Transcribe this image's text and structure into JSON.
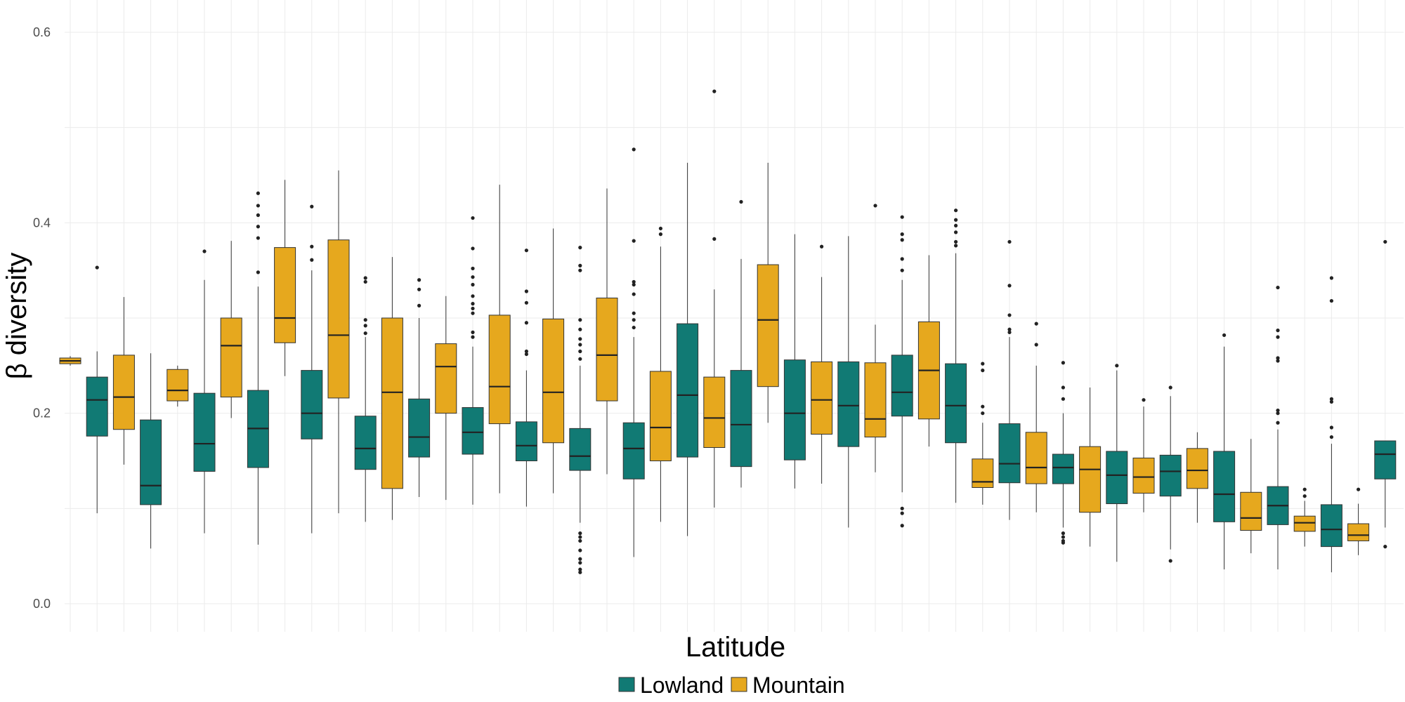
{
  "chart_data": {
    "type": "box",
    "xlabel": "Latitude",
    "ylabel": "β diversity",
    "ylim": [
      -0.03,
      0.63
    ],
    "y_ticks": [
      0.0,
      0.2,
      0.4,
      0.6
    ],
    "y_tick_labels": [
      "0.0",
      "0.2",
      "0.4",
      "0.6"
    ],
    "grid": true,
    "legend": {
      "position": "bottom",
      "entries": [
        "Lowland",
        "Mountain"
      ]
    },
    "colors": {
      "Lowland": "#117A74",
      "Mountain": "#E6A81E"
    },
    "boxes": [
      {
        "group": "Mountain",
        "q1": 0.252,
        "median": 0.255,
        "q3": 0.258,
        "whisker_low": 0.25,
        "whisker_high": 0.26,
        "outliers": []
      },
      {
        "group": "Lowland",
        "q1": 0.176,
        "median": 0.214,
        "q3": 0.238,
        "whisker_low": 0.095,
        "whisker_high": 0.265,
        "outliers": [
          0.353
        ]
      },
      {
        "group": "Mountain",
        "q1": 0.183,
        "median": 0.217,
        "q3": 0.261,
        "whisker_low": 0.146,
        "whisker_high": 0.322,
        "outliers": []
      },
      {
        "group": "Lowland",
        "q1": 0.104,
        "median": 0.124,
        "q3": 0.193,
        "whisker_low": 0.058,
        "whisker_high": 0.263,
        "outliers": []
      },
      {
        "group": "Mountain",
        "q1": 0.213,
        "median": 0.224,
        "q3": 0.246,
        "whisker_low": 0.207,
        "whisker_high": 0.25,
        "outliers": []
      },
      {
        "group": "Lowland",
        "q1": 0.139,
        "median": 0.168,
        "q3": 0.221,
        "whisker_low": 0.074,
        "whisker_high": 0.34,
        "outliers": [
          0.37
        ]
      },
      {
        "group": "Mountain",
        "q1": 0.217,
        "median": 0.271,
        "q3": 0.3,
        "whisker_low": 0.195,
        "whisker_high": 0.381,
        "outliers": []
      },
      {
        "group": "Lowland",
        "q1": 0.143,
        "median": 0.184,
        "q3": 0.224,
        "whisker_low": 0.062,
        "whisker_high": 0.333,
        "outliers": [
          0.348,
          0.384,
          0.396,
          0.408,
          0.418,
          0.431
        ]
      },
      {
        "group": "Mountain",
        "q1": 0.274,
        "median": 0.3,
        "q3": 0.374,
        "whisker_low": 0.239,
        "whisker_high": 0.445,
        "outliers": []
      },
      {
        "group": "Lowland",
        "q1": 0.173,
        "median": 0.2,
        "q3": 0.245,
        "whisker_low": 0.074,
        "whisker_high": 0.35,
        "outliers": [
          0.361,
          0.375,
          0.417
        ]
      },
      {
        "group": "Mountain",
        "q1": 0.216,
        "median": 0.282,
        "q3": 0.382,
        "whisker_low": 0.095,
        "whisker_high": 0.455,
        "outliers": []
      },
      {
        "group": "Lowland",
        "q1": 0.141,
        "median": 0.163,
        "q3": 0.197,
        "whisker_low": 0.086,
        "whisker_high": 0.28,
        "outliers": [
          0.284,
          0.292,
          0.298,
          0.338,
          0.342
        ]
      },
      {
        "group": "Mountain",
        "q1": 0.121,
        "median": 0.222,
        "q3": 0.3,
        "whisker_low": 0.088,
        "whisker_high": 0.364,
        "outliers": []
      },
      {
        "group": "Lowland",
        "q1": 0.154,
        "median": 0.175,
        "q3": 0.215,
        "whisker_low": 0.112,
        "whisker_high": 0.3,
        "outliers": [
          0.313,
          0.33,
          0.34
        ]
      },
      {
        "group": "Mountain",
        "q1": 0.2,
        "median": 0.249,
        "q3": 0.273,
        "whisker_low": 0.109,
        "whisker_high": 0.323,
        "outliers": []
      },
      {
        "group": "Lowland",
        "q1": 0.157,
        "median": 0.18,
        "q3": 0.206,
        "whisker_low": 0.104,
        "whisker_high": 0.27,
        "outliers": [
          0.28,
          0.285,
          0.305,
          0.31,
          0.315,
          0.323,
          0.335,
          0.343,
          0.352,
          0.373,
          0.405
        ]
      },
      {
        "group": "Mountain",
        "q1": 0.189,
        "median": 0.228,
        "q3": 0.303,
        "whisker_low": 0.116,
        "whisker_high": 0.44,
        "outliers": []
      },
      {
        "group": "Lowland",
        "q1": 0.15,
        "median": 0.166,
        "q3": 0.191,
        "whisker_low": 0.102,
        "whisker_high": 0.245,
        "outliers": [
          0.262,
          0.265,
          0.295,
          0.316,
          0.328,
          0.371
        ]
      },
      {
        "group": "Mountain",
        "q1": 0.169,
        "median": 0.222,
        "q3": 0.299,
        "whisker_low": 0.116,
        "whisker_high": 0.394,
        "outliers": []
      },
      {
        "group": "Lowland",
        "q1": 0.14,
        "median": 0.155,
        "q3": 0.184,
        "whisker_low": 0.085,
        "whisker_high": 0.25,
        "outliers": [
          0.033,
          0.036,
          0.043,
          0.047,
          0.056,
          0.066,
          0.07,
          0.074,
          0.257,
          0.265,
          0.272,
          0.278,
          0.288,
          0.298,
          0.35,
          0.355,
          0.374
        ]
      },
      {
        "group": "Mountain",
        "q1": 0.213,
        "median": 0.261,
        "q3": 0.321,
        "whisker_low": 0.136,
        "whisker_high": 0.436,
        "outliers": []
      },
      {
        "group": "Lowland",
        "q1": 0.131,
        "median": 0.163,
        "q3": 0.19,
        "whisker_low": 0.049,
        "whisker_high": 0.28,
        "outliers": [
          0.29,
          0.298,
          0.305,
          0.325,
          0.335,
          0.338,
          0.381,
          0.477
        ]
      },
      {
        "group": "Mountain",
        "q1": 0.15,
        "median": 0.185,
        "q3": 0.244,
        "whisker_low": 0.086,
        "whisker_high": 0.375,
        "outliers": [
          0.388,
          0.394
        ]
      },
      {
        "group": "Lowland",
        "q1": 0.154,
        "median": 0.219,
        "q3": 0.294,
        "whisker_low": 0.071,
        "whisker_high": 0.463,
        "outliers": []
      },
      {
        "group": "Mountain",
        "q1": 0.164,
        "median": 0.195,
        "q3": 0.238,
        "whisker_low": 0.101,
        "whisker_high": 0.33,
        "outliers": [
          0.383,
          0.538
        ]
      },
      {
        "group": "Lowland",
        "q1": 0.144,
        "median": 0.188,
        "q3": 0.245,
        "whisker_low": 0.122,
        "whisker_high": 0.362,
        "outliers": [
          0.422
        ]
      },
      {
        "group": "Mountain",
        "q1": 0.228,
        "median": 0.298,
        "q3": 0.356,
        "whisker_low": 0.19,
        "whisker_high": 0.463,
        "outliers": []
      },
      {
        "group": "Lowland",
        "q1": 0.151,
        "median": 0.2,
        "q3": 0.256,
        "whisker_low": 0.121,
        "whisker_high": 0.388,
        "outliers": []
      },
      {
        "group": "Mountain",
        "q1": 0.178,
        "median": 0.214,
        "q3": 0.254,
        "whisker_low": 0.126,
        "whisker_high": 0.343,
        "outliers": [
          0.375
        ]
      },
      {
        "group": "Lowland",
        "q1": 0.165,
        "median": 0.208,
        "q3": 0.254,
        "whisker_low": 0.08,
        "whisker_high": 0.386,
        "outliers": []
      },
      {
        "group": "Mountain",
        "q1": 0.175,
        "median": 0.194,
        "q3": 0.253,
        "whisker_low": 0.138,
        "whisker_high": 0.293,
        "outliers": [
          0.418
        ]
      },
      {
        "group": "Lowland",
        "q1": 0.197,
        "median": 0.222,
        "q3": 0.261,
        "whisker_low": 0.117,
        "whisker_high": 0.34,
        "outliers": [
          0.082,
          0.095,
          0.1,
          0.35,
          0.362,
          0.382,
          0.388,
          0.406
        ]
      },
      {
        "group": "Mountain",
        "q1": 0.194,
        "median": 0.245,
        "q3": 0.296,
        "whisker_low": 0.165,
        "whisker_high": 0.366,
        "outliers": []
      },
      {
        "group": "Lowland",
        "q1": 0.169,
        "median": 0.208,
        "q3": 0.252,
        "whisker_low": 0.106,
        "whisker_high": 0.368,
        "outliers": [
          0.376,
          0.38,
          0.39,
          0.397,
          0.403,
          0.413
        ]
      },
      {
        "group": "Mountain",
        "q1": 0.122,
        "median": 0.128,
        "q3": 0.152,
        "whisker_low": 0.104,
        "whisker_high": 0.19,
        "outliers": [
          0.2,
          0.207,
          0.245,
          0.252
        ]
      },
      {
        "group": "Lowland",
        "q1": 0.127,
        "median": 0.147,
        "q3": 0.189,
        "whisker_low": 0.088,
        "whisker_high": 0.28,
        "outliers": [
          0.285,
          0.288,
          0.303,
          0.334,
          0.38
        ]
      },
      {
        "group": "Mountain",
        "q1": 0.126,
        "median": 0.143,
        "q3": 0.18,
        "whisker_low": 0.096,
        "whisker_high": 0.25,
        "outliers": [
          0.272,
          0.294
        ]
      },
      {
        "group": "Lowland",
        "q1": 0.126,
        "median": 0.143,
        "q3": 0.157,
        "whisker_low": 0.08,
        "whisker_high": 0.2,
        "outliers": [
          0.064,
          0.066,
          0.07,
          0.074,
          0.215,
          0.227,
          0.253
        ]
      },
      {
        "group": "Mountain",
        "q1": 0.096,
        "median": 0.141,
        "q3": 0.165,
        "whisker_low": 0.06,
        "whisker_high": 0.227,
        "outliers": []
      },
      {
        "group": "Lowland",
        "q1": 0.105,
        "median": 0.135,
        "q3": 0.16,
        "whisker_low": 0.044,
        "whisker_high": 0.245,
        "outliers": [
          0.25
        ]
      },
      {
        "group": "Mountain",
        "q1": 0.116,
        "median": 0.133,
        "q3": 0.153,
        "whisker_low": 0.096,
        "whisker_high": 0.207,
        "outliers": [
          0.214
        ]
      },
      {
        "group": "Lowland",
        "q1": 0.113,
        "median": 0.139,
        "q3": 0.156,
        "whisker_low": 0.057,
        "whisker_high": 0.218,
        "outliers": [
          0.045,
          0.227
        ]
      },
      {
        "group": "Mountain",
        "q1": 0.121,
        "median": 0.14,
        "q3": 0.163,
        "whisker_low": 0.085,
        "whisker_high": 0.18,
        "outliers": []
      },
      {
        "group": "Lowland",
        "q1": 0.086,
        "median": 0.115,
        "q3": 0.16,
        "whisker_low": 0.036,
        "whisker_high": 0.27,
        "outliers": [
          0.282
        ]
      },
      {
        "group": "Mountain",
        "q1": 0.077,
        "median": 0.09,
        "q3": 0.117,
        "whisker_low": 0.053,
        "whisker_high": 0.173,
        "outliers": []
      },
      {
        "group": "Lowland",
        "q1": 0.083,
        "median": 0.103,
        "q3": 0.123,
        "whisker_low": 0.036,
        "whisker_high": 0.183,
        "outliers": [
          0.19,
          0.2,
          0.203,
          0.255,
          0.258,
          0.28,
          0.287,
          0.332
        ]
      },
      {
        "group": "Mountain",
        "q1": 0.076,
        "median": 0.085,
        "q3": 0.092,
        "whisker_low": 0.06,
        "whisker_high": 0.108,
        "outliers": [
          0.113,
          0.12
        ]
      },
      {
        "group": "Lowland",
        "q1": 0.06,
        "median": 0.078,
        "q3": 0.104,
        "whisker_low": 0.033,
        "whisker_high": 0.168,
        "outliers": [
          0.175,
          0.185,
          0.212,
          0.215,
          0.318,
          0.342
        ]
      },
      {
        "group": "Mountain",
        "q1": 0.066,
        "median": 0.072,
        "q3": 0.084,
        "whisker_low": 0.051,
        "whisker_high": 0.105,
        "outliers": [
          0.12
        ]
      },
      {
        "group": "Lowland",
        "q1": 0.131,
        "median": 0.157,
        "q3": 0.171,
        "whisker_low": 0.08,
        "whisker_high": 0.171,
        "outliers": [
          0.06,
          0.38
        ]
      }
    ]
  }
}
